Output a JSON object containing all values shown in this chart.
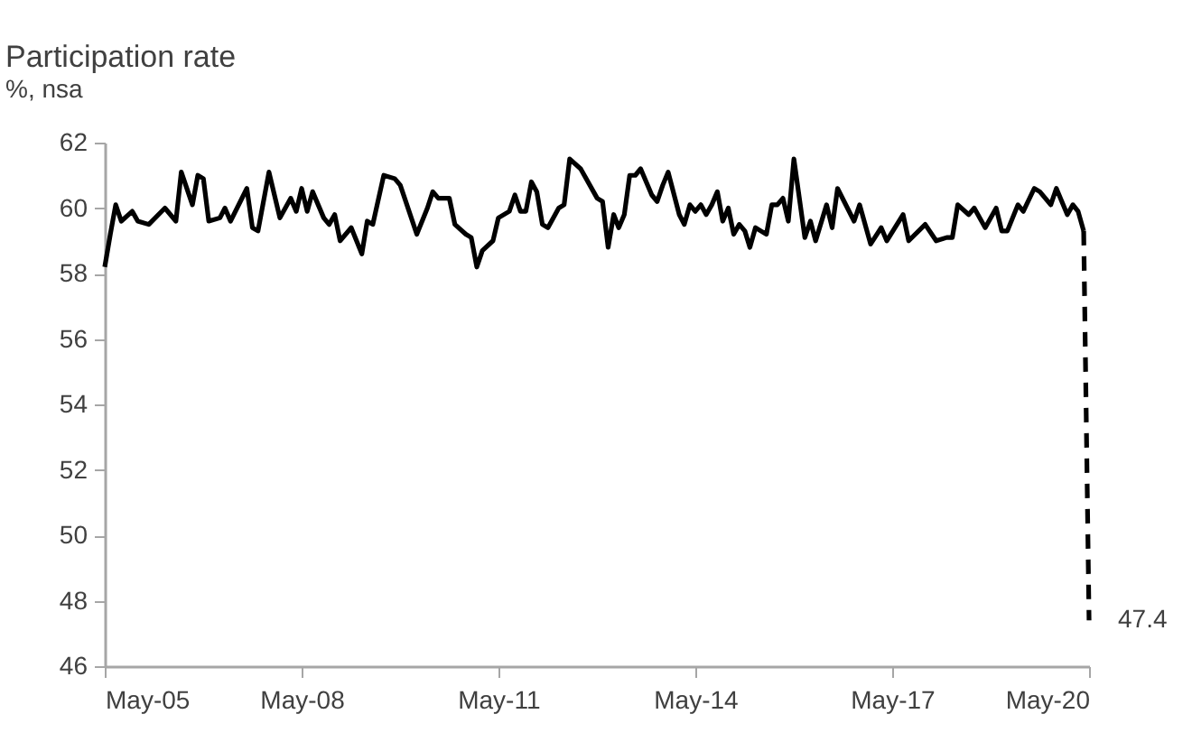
{
  "chart_data": {
    "type": "line",
    "title": "Participation rate",
    "subtitle": "%, nsa",
    "x": [
      "2005-05",
      "2005-06",
      "2005-07",
      "2005-08",
      "2005-10",
      "2005-11",
      "2006-01",
      "2006-04",
      "2006-06",
      "2006-07",
      "2006-09",
      "2006-10",
      "2006-11",
      "2006-12",
      "2007-02",
      "2007-03",
      "2007-04",
      "2007-07",
      "2007-08",
      "2007-09",
      "2007-11",
      "2008-01",
      "2008-03",
      "2008-04",
      "2008-05",
      "2008-06",
      "2008-07",
      "2008-09",
      "2008-10",
      "2008-11",
      "2008-12",
      "2009-02",
      "2009-04",
      "2009-05",
      "2009-06",
      "2009-08",
      "2009-10",
      "2009-11",
      "2010-02",
      "2010-04",
      "2010-05",
      "2010-06",
      "2010-08",
      "2010-09",
      "2010-11",
      "2010-12",
      "2011-01",
      "2011-02",
      "2011-04",
      "2011-05",
      "2011-07",
      "2011-08",
      "2011-09",
      "2011-10",
      "2011-11",
      "2011-12",
      "2012-01",
      "2012-02",
      "2012-04",
      "2012-05",
      "2012-06",
      "2012-08",
      "2012-11",
      "2012-12",
      "2013-01",
      "2013-02",
      "2013-03",
      "2013-04",
      "2013-05",
      "2013-06",
      "2013-07",
      "2013-09",
      "2013-10",
      "2013-11",
      "2013-12",
      "2014-02",
      "2014-03",
      "2014-04",
      "2014-05",
      "2014-06",
      "2014-07",
      "2014-08",
      "2014-09",
      "2014-10",
      "2014-11",
      "2014-12",
      "2015-01",
      "2015-02",
      "2015-03",
      "2015-04",
      "2015-05",
      "2015-06",
      "2015-07",
      "2015-08",
      "2015-09",
      "2015-10",
      "2015-11",
      "2016-01",
      "2016-02",
      "2016-03",
      "2016-05",
      "2016-06",
      "2016-07",
      "2016-10",
      "2016-11",
      "2017-01",
      "2017-03",
      "2017-04",
      "2017-07",
      "2017-08",
      "2017-11",
      "2018-01",
      "2018-03",
      "2018-04",
      "2018-05",
      "2018-07",
      "2018-08",
      "2018-10",
      "2018-12",
      "2019-01",
      "2019-02",
      "2019-04",
      "2019-05",
      "2019-07",
      "2019-08",
      "2019-10",
      "2019-11",
      "2020-01",
      "2020-02",
      "2020-03",
      "2020-04"
    ],
    "series": [
      {
        "color": "#000000",
        "line_style": "solid",
        "values": [
          58.2,
          59.2,
          60.1,
          59.6,
          59.9,
          59.6,
          59.5,
          60.0,
          59.6,
          61.1,
          60.1,
          61.0,
          60.9,
          59.6,
          59.7,
          60.0,
          59.6,
          60.6,
          59.4,
          59.3,
          61.1,
          59.7,
          60.3,
          59.9,
          60.6,
          59.9,
          60.5,
          59.7,
          59.5,
          59.8,
          59.0,
          59.4,
          58.6,
          59.6,
          59.5,
          61.0,
          60.9,
          60.7,
          59.2,
          60.0,
          60.5,
          60.3,
          60.3,
          59.5,
          59.2,
          59.1,
          58.2,
          58.7,
          59.0,
          59.7,
          59.9,
          60.4,
          59.9,
          59.9,
          60.8,
          60.5,
          59.5,
          59.4,
          60.0,
          60.1,
          61.5,
          61.2,
          60.3,
          60.2,
          58.8,
          59.8,
          59.4,
          59.8,
          61.0,
          61.0,
          61.2,
          60.4,
          60.2,
          60.7,
          61.1,
          59.8,
          59.5,
          60.1,
          59.9,
          60.1,
          59.8,
          60.1,
          60.5,
          59.6,
          60.0,
          59.2,
          59.5,
          59.3,
          58.8,
          59.4,
          59.3,
          59.2,
          60.1,
          60.1,
          60.3,
          59.6,
          61.5,
          59.1,
          59.6,
          59.0,
          60.1,
          59.4,
          60.6,
          59.6,
          60.1,
          58.9,
          59.4,
          59.0,
          59.8,
          59.0,
          59.5,
          59.0,
          59.1,
          59.1,
          60.1,
          59.8,
          60.0,
          59.4,
          60.0,
          59.3,
          59.3,
          60.1,
          59.9,
          60.6,
          60.5,
          60.1,
          60.6,
          59.8,
          60.1,
          59.9,
          59.3
        ]
      },
      {
        "color": "#000000",
        "line_style": "dashed",
        "x": [
          "2020-04",
          "2020-05"
        ],
        "values": [
          59.3,
          47.4
        ]
      }
    ],
    "xlim": [
      "2005-05",
      "2020-05"
    ],
    "xticks": [
      {
        "value": "2005-05",
        "label": "May-05"
      },
      {
        "value": "2008-05",
        "label": "May-08"
      },
      {
        "value": "2011-05",
        "label": "May-11"
      },
      {
        "value": "2014-05",
        "label": "May-14"
      },
      {
        "value": "2017-05",
        "label": "May-17"
      },
      {
        "value": "2020-05",
        "label": "May-20"
      }
    ],
    "ylim": [
      46,
      62
    ],
    "yticks": [
      46,
      48,
      50,
      52,
      54,
      56,
      58,
      60,
      62
    ],
    "annotations": [
      {
        "text": "47.4",
        "x": "2020-05",
        "y": 47.4
      }
    ]
  }
}
